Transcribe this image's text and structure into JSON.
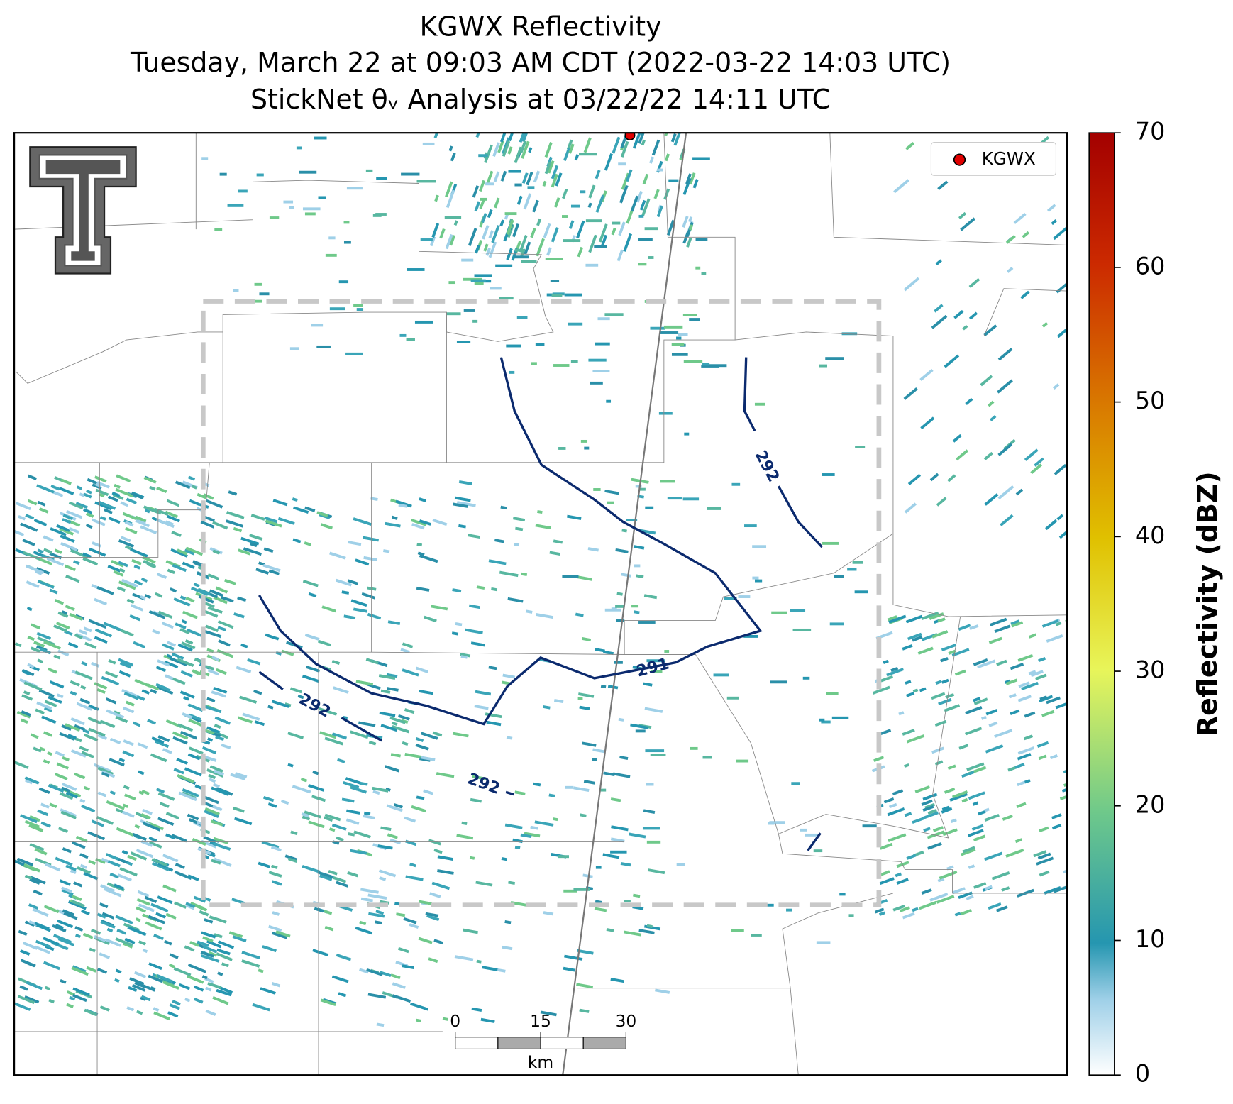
{
  "title": [
    "KGWX Reflectivity",
    "Tuesday, March 22 at 09:03 AM CDT (2022-03-22 14:03 UTC)",
    "StickNet θᵥ Analysis at 03/22/22 14:11 UTC"
  ],
  "legend": {
    "label": "KGWX",
    "color": "#e00000"
  },
  "colorbar": {
    "label": "Reflectivity (dBZ)",
    "lim": [
      0,
      70
    ],
    "ticks": [
      0,
      10,
      20,
      30,
      40,
      50,
      60,
      70
    ]
  },
  "contour_labels": [
    292,
    291,
    292,
    292
  ],
  "scale_bar": {
    "lim": [
      0,
      30
    ],
    "ticks": [
      0,
      15,
      30
    ],
    "unit": "km"
  }
}
